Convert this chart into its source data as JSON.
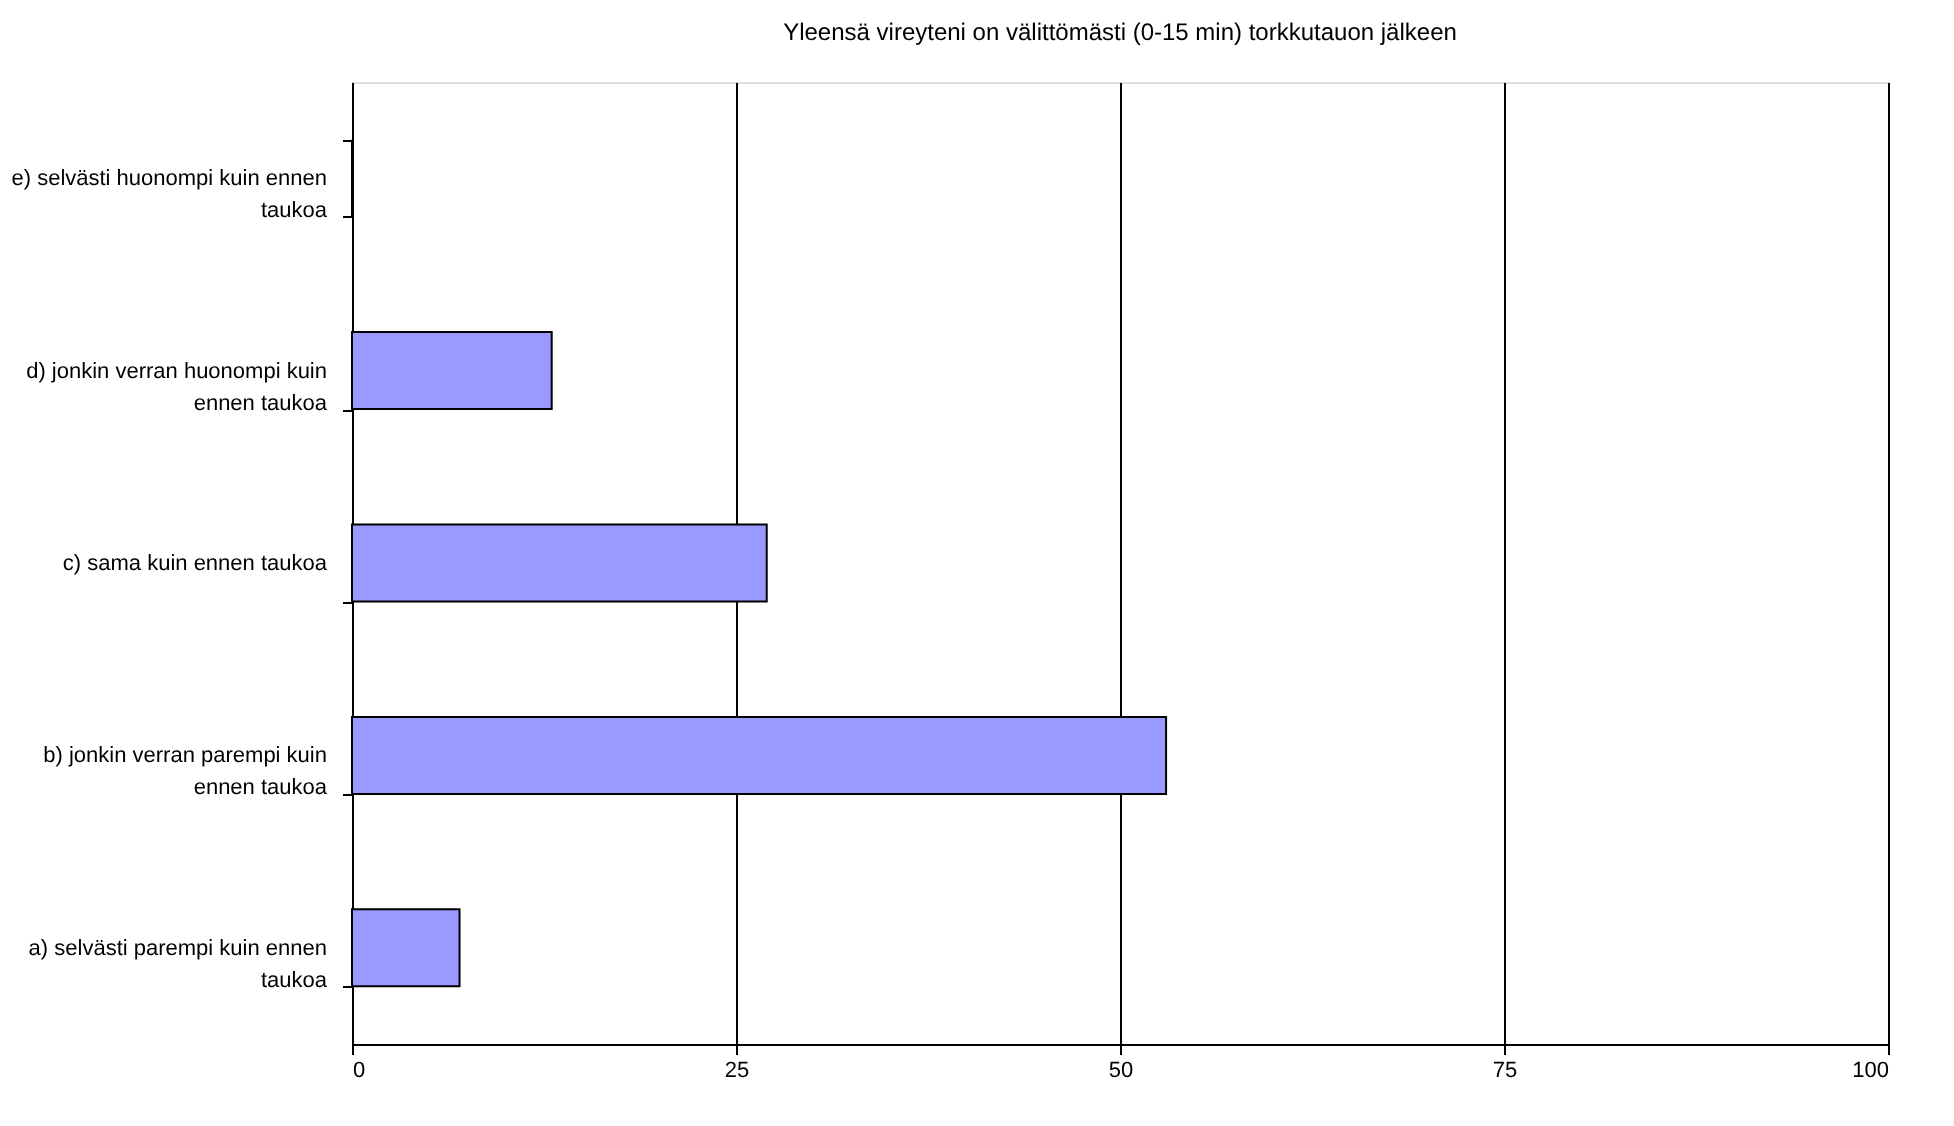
{
  "chart_data": {
    "type": "bar",
    "orientation": "horizontal",
    "title": "Yleensä vireyteni on välittömästi (0-15 min) torkkutauon jälkeen",
    "categories": [
      "e) selvästi huonompi kuin ennen taukoa",
      "d) jonkin verran huonompi kuin ennen taukoa",
      "c) sama kuin ennen taukoa",
      "b) jonkin verran parempi kuin ennen taukoa",
      "a) selvästi parempi kuin ennen taukoa"
    ],
    "values": [
      0,
      13,
      27,
      53,
      7
    ],
    "color": "#9999ff",
    "xlim": [
      0,
      100
    ],
    "xticks": [
      0,
      25,
      50,
      75,
      100
    ],
    "grid": "x"
  }
}
